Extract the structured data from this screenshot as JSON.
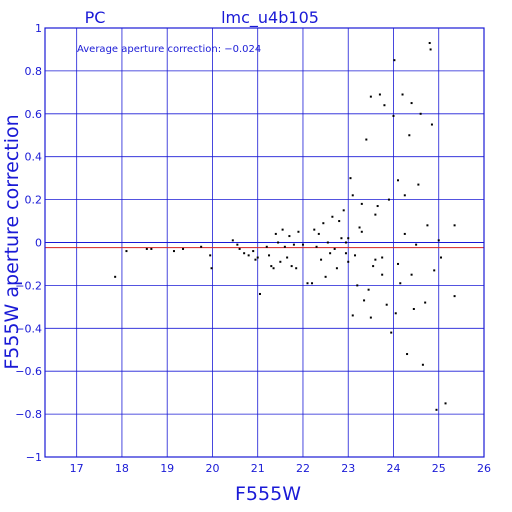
{
  "chart_data": {
    "type": "scatter",
    "title": "lmc_u4b105",
    "subtitle": "PC",
    "annotation": "Average aperture correction: −0.024",
    "xlabel": "F555W",
    "ylabel": "F555W aperture correction",
    "xlim": [
      16.3,
      26
    ],
    "ylim": [
      -1,
      1
    ],
    "xticks": [
      "17",
      "18",
      "19",
      "20",
      "21",
      "22",
      "23",
      "24",
      "25",
      "26"
    ],
    "yticks": [
      "1",
      "0.8",
      "0.6",
      "0.4",
      "0.2",
      "0",
      "−0.2",
      "−0.4",
      "−0.6",
      "−0.8",
      "−1"
    ],
    "grid": true,
    "reference_lines": [
      {
        "y": 0,
        "color": "#1a1ad6"
      },
      {
        "y": -0.024,
        "color": "#d62020"
      }
    ],
    "colors": {
      "axes": "#1a1ad6",
      "points": "#000000",
      "average_line": "#d62020"
    },
    "points": [
      [
        17.85,
        -0.16
      ],
      [
        18.1,
        -0.04
      ],
      [
        18.55,
        -0.03
      ],
      [
        18.65,
        -0.03
      ],
      [
        19.15,
        -0.04
      ],
      [
        19.35,
        -0.03
      ],
      [
        19.75,
        -0.02
      ],
      [
        19.95,
        -0.06
      ],
      [
        19.98,
        -0.12
      ],
      [
        20.45,
        0.01
      ],
      [
        20.55,
        -0.01
      ],
      [
        20.6,
        -0.03
      ],
      [
        20.7,
        -0.05
      ],
      [
        20.8,
        -0.06
      ],
      [
        20.9,
        -0.04
      ],
      [
        20.95,
        -0.08
      ],
      [
        21.0,
        -0.07
      ],
      [
        21.05,
        -0.24
      ],
      [
        21.2,
        -0.02
      ],
      [
        21.25,
        -0.06
      ],
      [
        21.3,
        -0.11
      ],
      [
        21.35,
        -0.12
      ],
      [
        21.4,
        0.04
      ],
      [
        21.45,
        0.0
      ],
      [
        21.5,
        -0.09
      ],
      [
        21.55,
        0.06
      ],
      [
        21.6,
        -0.02
      ],
      [
        21.65,
        -0.07
      ],
      [
        21.7,
        0.03
      ],
      [
        21.75,
        -0.11
      ],
      [
        21.8,
        -0.01
      ],
      [
        21.85,
        -0.12
      ],
      [
        21.9,
        0.05
      ],
      [
        22.0,
        -0.01
      ],
      [
        22.1,
        -0.19
      ],
      [
        22.2,
        -0.19
      ],
      [
        22.25,
        0.06
      ],
      [
        22.3,
        -0.02
      ],
      [
        22.35,
        0.04
      ],
      [
        22.4,
        -0.08
      ],
      [
        22.45,
        0.09
      ],
      [
        22.5,
        -0.16
      ],
      [
        22.55,
        0.0
      ],
      [
        22.6,
        -0.05
      ],
      [
        22.65,
        0.12
      ],
      [
        22.7,
        -0.03
      ],
      [
        22.75,
        -0.12
      ],
      [
        22.8,
        0.1
      ],
      [
        22.85,
        0.02
      ],
      [
        22.9,
        0.15
      ],
      [
        22.95,
        -0.05
      ],
      [
        23.0,
        -0.09
      ],
      [
        23.05,
        0.3
      ],
      [
        23.1,
        0.22
      ],
      [
        23.15,
        -0.06
      ],
      [
        23.2,
        -0.2
      ],
      [
        23.25,
        0.07
      ],
      [
        23.3,
        0.18
      ],
      [
        23.35,
        -0.27
      ],
      [
        23.4,
        0.48
      ],
      [
        23.45,
        -0.22
      ],
      [
        23.5,
        0.68
      ],
      [
        23.55,
        -0.11
      ],
      [
        23.6,
        -0.08
      ],
      [
        23.65,
        0.17
      ],
      [
        23.7,
        0.69
      ],
      [
        23.75,
        -0.15
      ],
      [
        23.8,
        0.64
      ],
      [
        23.85,
        -0.29
      ],
      [
        23.9,
        0.2
      ],
      [
        23.95,
        -0.42
      ],
      [
        24.0,
        0.59
      ],
      [
        24.02,
        0.85
      ],
      [
        24.05,
        -0.33
      ],
      [
        24.1,
        0.29
      ],
      [
        24.15,
        -0.19
      ],
      [
        24.2,
        0.69
      ],
      [
        24.25,
        0.04
      ],
      [
        24.3,
        -0.52
      ],
      [
        24.35,
        0.5
      ],
      [
        24.4,
        0.65
      ],
      [
        24.45,
        -0.31
      ],
      [
        24.5,
        -0.01
      ],
      [
        24.55,
        0.27
      ],
      [
        24.6,
        0.6
      ],
      [
        24.65,
        -0.57
      ],
      [
        24.7,
        -0.28
      ],
      [
        24.75,
        0.08
      ],
      [
        24.8,
        0.93
      ],
      [
        24.82,
        0.9
      ],
      [
        24.85,
        0.55
      ],
      [
        24.9,
        -0.13
      ],
      [
        24.95,
        -0.78
      ],
      [
        25.0,
        0.01
      ],
      [
        25.05,
        -0.07
      ],
      [
        25.15,
        -0.75
      ],
      [
        25.35,
        0.08
      ],
      [
        25.35,
        -0.25
      ],
      [
        23.1,
        -0.34
      ],
      [
        23.5,
        -0.35
      ],
      [
        23.0,
        0.02
      ],
      [
        23.3,
        0.05
      ],
      [
        22.95,
        0.0
      ],
      [
        23.6,
        0.13
      ],
      [
        23.75,
        -0.07
      ],
      [
        24.1,
        -0.1
      ],
      [
        24.4,
        -0.15
      ],
      [
        24.25,
        0.22
      ]
    ]
  }
}
